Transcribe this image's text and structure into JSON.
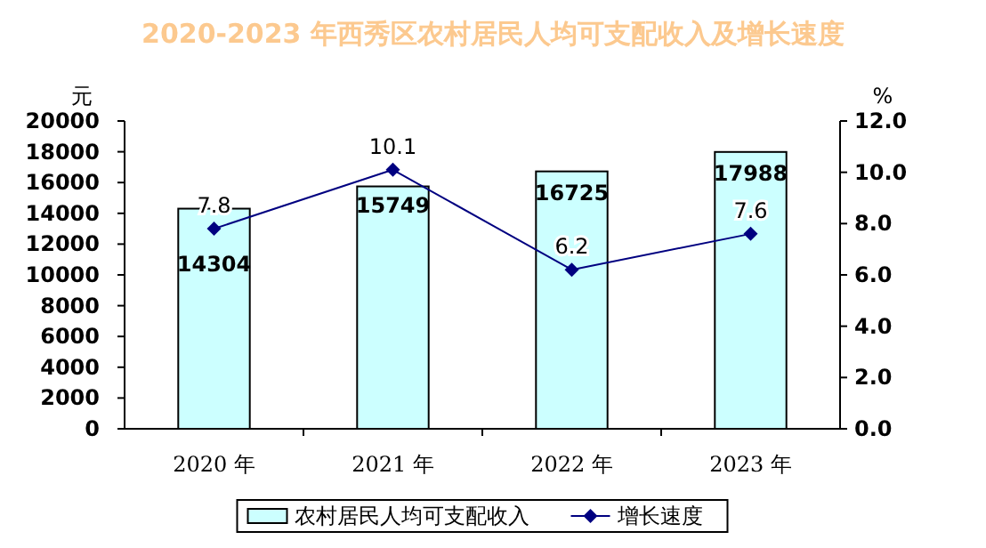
{
  "chart_data": {
    "type": "bar",
    "title": "2020-2023 年西秀区农村居民人均可支配收入及增长速度",
    "ylabel": "元",
    "y2label": "%",
    "categories": [
      "2020 年",
      "2021 年",
      "2022 年",
      "2023 年"
    ],
    "series": [
      {
        "name": "农村居民人均可支配收入",
        "color": "#ccffff",
        "values": [
          14304,
          15749,
          16725,
          17988
        ]
      },
      {
        "name": "增长速度",
        "type": "line",
        "axis": "y2",
        "color": "#000080",
        "marker": "diamond",
        "values": [
          7.8,
          10.1,
          6.2,
          7.6
        ]
      }
    ],
    "ylim": [
      0,
      20000
    ],
    "yticks": [
      0,
      2000,
      4000,
      6000,
      8000,
      10000,
      12000,
      14000,
      16000,
      18000,
      20000
    ],
    "y2lim": [
      0,
      12
    ],
    "y2ticks": [
      {
        "value": 0,
        "label": "0.0"
      },
      {
        "value": 2,
        "label": "2.0"
      },
      {
        "value": 4,
        "label": "4.0"
      },
      {
        "value": 6,
        "label": "6.0"
      },
      {
        "value": 8,
        "label": "8.0"
      },
      {
        "value": 10,
        "label": "10.0"
      },
      {
        "value": 12,
        "label": "12.0"
      }
    ],
    "data_labels": true,
    "legend": "bottom",
    "grid": false
  }
}
